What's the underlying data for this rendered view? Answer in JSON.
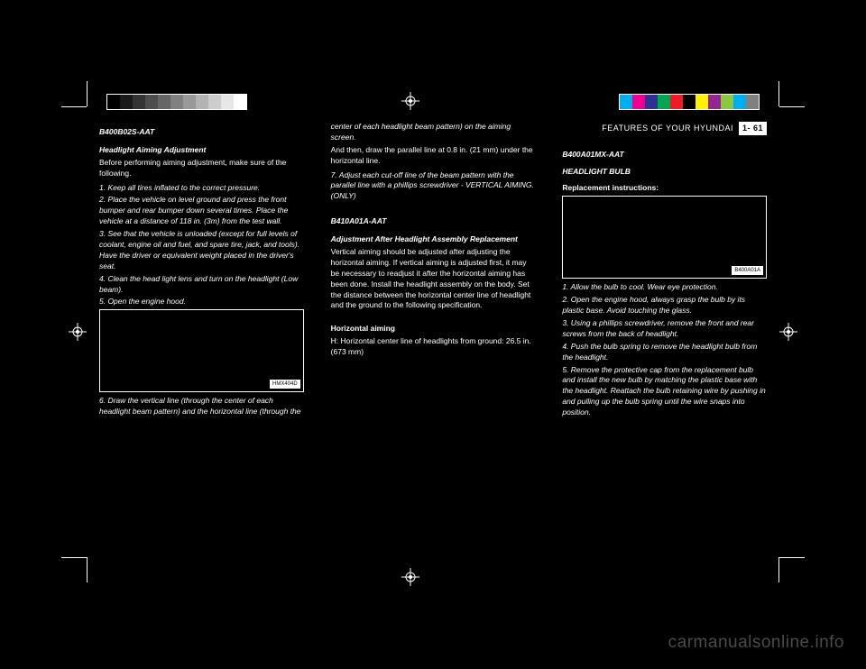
{
  "running_head": "FEATURES OF YOUR HYUNDAI",
  "page_number": "1- 61",
  "grayscale_swatches": [
    "#000000",
    "#1a1a1a",
    "#333333",
    "#4d4d4d",
    "#666666",
    "#808080",
    "#999999",
    "#b3b3b3",
    "#cccccc",
    "#e6e6e6",
    "#ffffff"
  ],
  "color_swatches": [
    "#00aeef",
    "#ec008c",
    "#2e3192",
    "#00a651",
    "#ed1c24",
    "#000000",
    "#fff200",
    "#92278f",
    "#8dc63f",
    "#00adef",
    "#808080"
  ],
  "col1": {
    "h1_code": "B400B02S-AAT",
    "h1": "Headlight Aiming Adjustment",
    "p1": "Before performing aiming adjustment, make sure of the following.",
    "b1": "1. Keep all tires inflated to the correct pressure.",
    "b2": "2. Place the vehicle on level ground and press the front bumper and rear bumper down several times. Place the vehicle at a distance of 118 in. (3m) from the test wall.",
    "b3": "3. See that the vehicle is unloaded (except for full levels of coolant, engine oil and fuel, and spare tire, jack, and tools). Have the driver or equivalent weight placed in the driver's seat.",
    "b4": "4. Clean the head light lens and turn on the headlight (Low beam).",
    "b5": "5. Open the engine hood.",
    "illus_label": "HMX404D",
    "b6_before": "6. Draw the vertical line (through the center of each headlight beam pattern) and the horizontal line (through the"
  },
  "col2": {
    "b6_after": "center of each headlight beam pattern) on the aiming screen.",
    "p2": "And then, draw the parallel line at 0.8 in. (21 mm) under the horizontal line.",
    "b7": "7. Adjust each cut-off line of the beam pattern with the parallel line with a phillips screwdriver - VERTICAL AIMING. (ONLY)",
    "h2_code": "B410A01A-AAT",
    "h2": "Adjustment After Headlight Assembly Replacement",
    "p3": "Vertical aiming should be adjusted after adjusting the horizontal aiming. If vertical aiming is adjusted first, it may be necessary to readjust it after the horizontal aiming has been done. Install the headlight assembly on the body. Set the distance between the horizontal center line of headlight and the ground to the following specification.",
    "spec_h": "Horizontal aiming",
    "spec_l": "H: Horizontal center line of headlights from ground: 26.5 in. (673 mm)"
  },
  "col3": {
    "h3_code": "B400A01MX-AAT",
    "h3": "HEADLIGHT BULB",
    "sub": "Replacement instructions:",
    "illus_label": "B400A01A",
    "s1": "1. Allow the bulb to cool. Wear eye protection.",
    "s2": "2. Open the engine hood, always grasp the bulb by its plastic base. Avoid touching the glass.",
    "s3": "3. Using a phillips screwdriver, remove the front and rear screws from the back of headlight.",
    "s4": "4. Push the bulb spring to remove the headlight bulb from the headlight.",
    "s5": "5. Remove the protective cap from the replacement bulb and install the new bulb by matching the plastic base with the headlight. Reattach the bulb retaining wire by pushing in and pulling up the bulb spring until the wire snaps into position."
  },
  "watermark": "carmanualsonline.info"
}
